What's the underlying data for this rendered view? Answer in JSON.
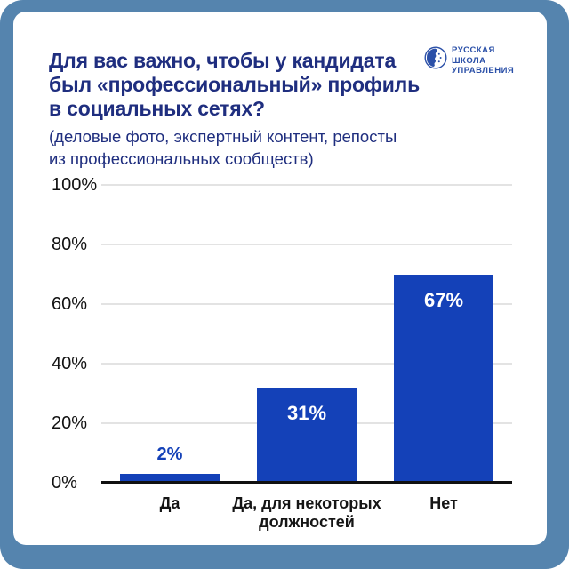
{
  "page": {
    "frame_color": "#5584ae",
    "card_color": "#ffffff"
  },
  "header": {
    "title_lines": [
      "Для вас важно, чтобы у кандидата",
      "был «профессиональный» профиль",
      "в социальных сетях?"
    ],
    "subtitle_lines": [
      "(деловые фото, экспертный контент, репосты",
      "из профессиональных сообществ)"
    ],
    "title_color": "#1f2e7f"
  },
  "logo": {
    "lines": [
      "РУССКАЯ",
      "ШКОЛА",
      "УПРАВЛЕНИЯ"
    ],
    "color": "#2b50a8",
    "icon": "rsu-globe-icon"
  },
  "chart_data": {
    "type": "bar",
    "title": "Для вас важно, чтобы у кандидата был «профессиональный» профиль в социальных сетях? (деловые фото, экспертный контент, репосты из профессиональных сообществ)",
    "categories": [
      "Да",
      "Да, для некоторых должностей",
      "Нет"
    ],
    "values": [
      2,
      31,
      67
    ],
    "bar_labels": [
      "2%",
      "31%",
      "67%"
    ],
    "label_inside": [
      false,
      true,
      true
    ],
    "display_heights_pct": [
      3,
      32,
      70
    ],
    "ylim": [
      0,
      100
    ],
    "yticks": [
      0,
      20,
      40,
      60,
      80,
      100
    ],
    "ytick_labels": [
      "0%",
      "20%",
      "40%",
      "60%",
      "80%",
      "100%"
    ],
    "grid": true,
    "legend_position": "none",
    "xlabel": "",
    "ylabel": "",
    "bar_color": "#1441b8",
    "value_label_color_inside": "#ffffff",
    "value_label_color_outside": "#1441b8",
    "gridline_color": "#e3e3e3",
    "baseline_color": "#101010"
  }
}
